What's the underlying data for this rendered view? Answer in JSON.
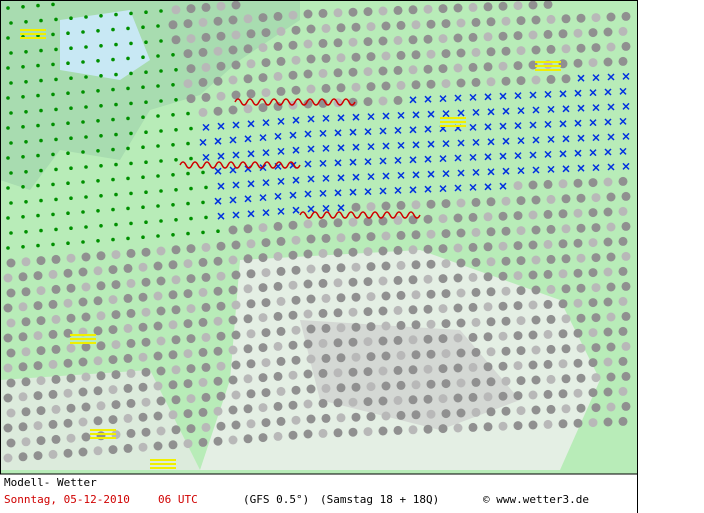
{
  "footer": {
    "model": "Modell- Wetter",
    "date": "Sonntag, 05-12-2010",
    "time": "06 UTC",
    "source": "(GFS 0.5°)",
    "run": "(Samstag 18 + 18Q)",
    "copyright": "© www.wetter3.de"
  }
}
